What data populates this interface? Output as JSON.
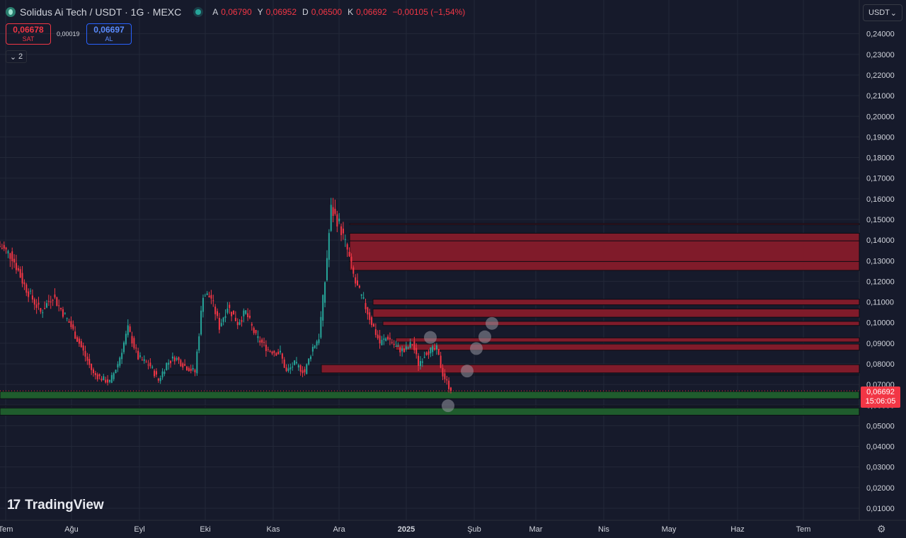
{
  "header": {
    "title": "Solidus Ai Tech / USDT · 1G · MEXC",
    "ohlc": [
      {
        "key": "A",
        "value": "0,06790"
      },
      {
        "key": "Y",
        "value": "0,06952"
      },
      {
        "key": "D",
        "value": "0,06500"
      },
      {
        "key": "K",
        "value": "0,06692"
      }
    ],
    "change": "−0,00105 (−1,54%)"
  },
  "trade": {
    "sell_price": "0,06678",
    "sell_label": "SAT",
    "spread": "0,00019",
    "buy_price": "0,06697",
    "buy_label": "AL"
  },
  "indicators_toggle": {
    "count": "2"
  },
  "currency_selector": {
    "value": "USDT"
  },
  "brand": {
    "name": "TradingView",
    "mark": "17"
  },
  "last_price": {
    "price": "0,06692",
    "countdown": "15:06:05"
  },
  "colors": {
    "background": "#161a2b",
    "up": "#26a69a",
    "down": "#f23645",
    "resistance_zone": "#801b2a",
    "support_zone": "#1f5c2d"
  },
  "chart_data": {
    "type": "candlestick",
    "x_ticks": [
      "Tem",
      "Ağu",
      "Eyl",
      "Eki",
      "Kas",
      "Ara",
      "2025",
      "Şub",
      "Mar",
      "Nis",
      "May",
      "Haz",
      "Tem"
    ],
    "y_ticks": [
      "0,24000",
      "0,23000",
      "0,22000",
      "0,21000",
      "0,20000",
      "0,19000",
      "0,18000",
      "0,17000",
      "0,16000",
      "0,15000",
      "0,14000",
      "0,13000",
      "0,12000",
      "0,11000",
      "0,10000",
      "0,09000",
      "0,08000",
      "0,07000",
      "0,06000",
      "0,05000",
      "0,04000",
      "0,03000",
      "0,02000",
      "0,01000"
    ],
    "ylim": [
      0.004,
      0.25
    ],
    "grid": true,
    "segments": [
      [
        0,
        0.137
      ],
      [
        6,
        0.132
      ],
      [
        12,
        0.118
      ],
      [
        20,
        0.105
      ],
      [
        26,
        0.113
      ],
      [
        34,
        0.1
      ],
      [
        40,
        0.088
      ],
      [
        46,
        0.075
      ],
      [
        54,
        0.071
      ],
      [
        58,
        0.08
      ],
      [
        63,
        0.097
      ],
      [
        68,
        0.083
      ],
      [
        74,
        0.079
      ],
      [
        78,
        0.072
      ],
      [
        82,
        0.08
      ],
      [
        86,
        0.083
      ],
      [
        91,
        0.079
      ],
      [
        96,
        0.076
      ],
      [
        100,
        0.114
      ],
      [
        104,
        0.112
      ],
      [
        108,
        0.098
      ],
      [
        112,
        0.108
      ],
      [
        117,
        0.1
      ],
      [
        121,
        0.105
      ],
      [
        126,
        0.093
      ],
      [
        132,
        0.087
      ],
      [
        138,
        0.085
      ],
      [
        141,
        0.076
      ],
      [
        145,
        0.08
      ],
      [
        150,
        0.076
      ],
      [
        154,
        0.088
      ],
      [
        157,
        0.093
      ],
      [
        160,
        0.12
      ],
      [
        163,
        0.155
      ],
      [
        167,
        0.148
      ],
      [
        171,
        0.135
      ],
      [
        175,
        0.119
      ],
      [
        179,
        0.11
      ],
      [
        183,
        0.1
      ],
      [
        187,
        0.09
      ],
      [
        191,
        0.093
      ],
      [
        195,
        0.088
      ],
      [
        199,
        0.086
      ],
      [
        203,
        0.09
      ],
      [
        206,
        0.08
      ],
      [
        210,
        0.086
      ],
      [
        215,
        0.087
      ],
      [
        218,
        0.075
      ],
      [
        222,
        0.067
      ]
    ],
    "zones": [
      {
        "kind": "resistance",
        "from": 0.148,
        "to": 0.1475
      },
      {
        "kind": "resistance",
        "from": 0.1433,
        "to": 0.1253
      },
      {
        "kind": "resistance",
        "from": 0.1113,
        "to": 0.1086
      },
      {
        "kind": "resistance",
        "from": 0.1066,
        "to": 0.1026
      },
      {
        "kind": "resistance",
        "from": 0.1006,
        "to": 0.0986
      },
      {
        "kind": "resistance",
        "from": 0.0926,
        "to": 0.0906
      },
      {
        "kind": "resistance",
        "from": 0.0896,
        "to": 0.0866
      },
      {
        "kind": "resistance",
        "from": 0.0796,
        "to": 0.0756
      },
      {
        "kind": "support",
        "from": 0.0666,
        "to": 0.0631
      },
      {
        "kind": "support",
        "from": 0.0586,
        "to": 0.0551
      }
    ],
    "markers": [
      0.0597,
      0.0765,
      0.0874,
      0.0931,
      0.0996,
      0.0928
    ],
    "last_close": 0.06692
  }
}
